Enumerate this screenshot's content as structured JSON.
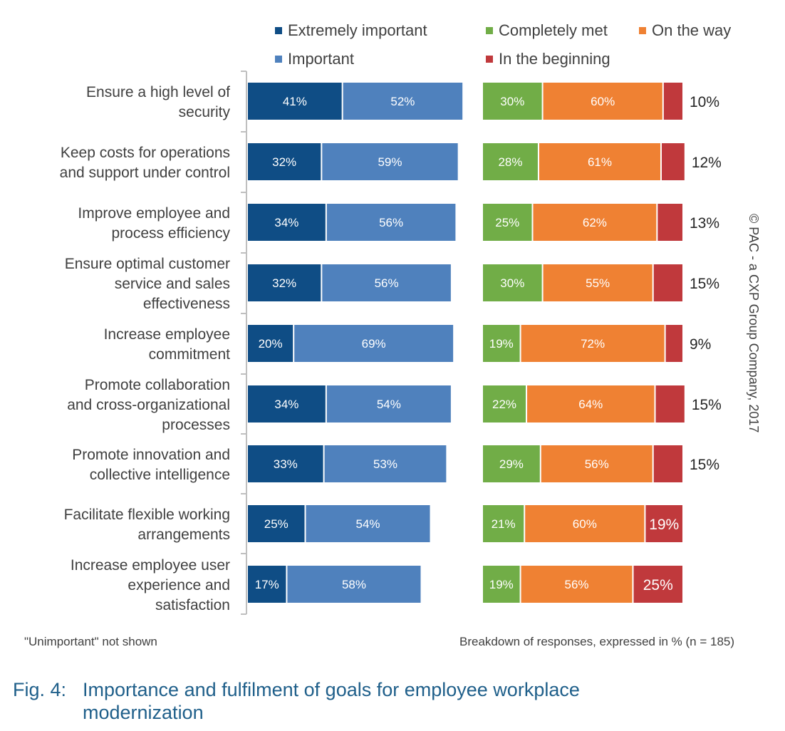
{
  "colors": {
    "extremely_important": "#0f4d85",
    "important": "#4f81bd",
    "completely_met": "#71ad47",
    "on_the_way": "#ef8133",
    "in_the_beginning": "#c0393c",
    "axis": "#bfbfbf"
  },
  "legend": {
    "extremely_important": "Extremely important",
    "important": "Important",
    "completely_met": "Completely met",
    "on_the_way": "On the way",
    "in_the_beginning": "In the beginning"
  },
  "footnote_left": "\"Unimportant\" not shown",
  "footnote_right": "Breakdown of responses, expressed in % (n = 185)",
  "caption": {
    "number": "Fig. 4:",
    "title_line1": "Importance and fulfilment of goals for employee workplace",
    "title_line2": "modernization"
  },
  "copyright": "© PAC - a CXP Group Company, 2017",
  "chart_data": {
    "type": "bar",
    "orientation": "horizontal",
    "stacked": true,
    "categories": [
      [
        "Ensure a high level of",
        "security"
      ],
      [
        "Keep costs for operations",
        "and support under control"
      ],
      [
        "Improve employee and",
        "process efficiency"
      ],
      [
        "Ensure optimal customer",
        "service and sales",
        "effectiveness"
      ],
      [
        "Increase employee",
        "commitment"
      ],
      [
        "Promote collaboration",
        "and cross-organizational",
        "processes"
      ],
      [
        "Promote innovation and",
        "collective intelligence"
      ],
      [
        "Facilitate flexible working",
        "arrangements"
      ],
      [
        "Increase employee user",
        "experience and",
        "satisfaction"
      ]
    ],
    "importance": [
      {
        "name": "Extremely important",
        "values": [
          41,
          32,
          34,
          32,
          20,
          34,
          33,
          25,
          17
        ]
      },
      {
        "name": "Important",
        "values": [
          52,
          59,
          56,
          56,
          69,
          54,
          53,
          54,
          58
        ]
      }
    ],
    "fulfilment": [
      {
        "name": "Completely met",
        "values": [
          30,
          28,
          25,
          30,
          19,
          22,
          29,
          21,
          19
        ]
      },
      {
        "name": "On the way",
        "values": [
          60,
          61,
          62,
          55,
          72,
          64,
          56,
          60,
          56
        ]
      },
      {
        "name": "In the beginning",
        "values": [
          10,
          12,
          13,
          15,
          9,
          15,
          15,
          19,
          25
        ]
      }
    ],
    "value_suffix": "%"
  }
}
